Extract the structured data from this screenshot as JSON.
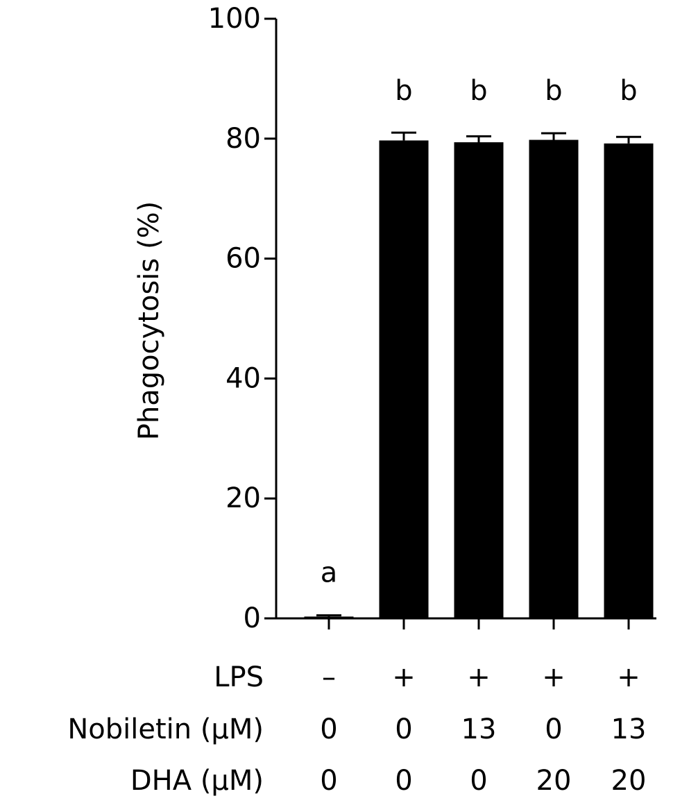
{
  "chart_data": {
    "type": "bar",
    "ylabel": "Phagocytosis (%)",
    "ylim": [
      0,
      100
    ],
    "yticks": [
      0,
      20,
      40,
      60,
      80,
      100
    ],
    "grid": false,
    "legend": "none",
    "bar_color": "#000000",
    "series": [
      {
        "values": [
          0.3,
          79.7,
          79.4,
          79.8,
          79.2
        ],
        "errors": [
          0.2,
          1.3,
          1.0,
          1.1,
          1.1
        ],
        "significance": [
          "a",
          "b",
          "b",
          "b",
          "b"
        ]
      }
    ],
    "conditions": [
      {
        "label": "LPS",
        "values": [
          "–",
          "+",
          "+",
          "+",
          "+"
        ]
      },
      {
        "label": "Nobiletin (µM)",
        "values": [
          "0",
          "0",
          "13",
          "0",
          "13"
        ]
      },
      {
        "label": "DHA (µM)",
        "values": [
          "0",
          "0",
          "0",
          "20",
          "20"
        ]
      }
    ]
  }
}
